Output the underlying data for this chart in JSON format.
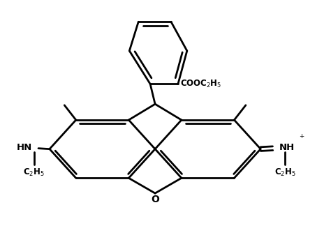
{
  "background_color": "#ffffff",
  "line_color": "#000000",
  "line_width": 2.0,
  "fig_width": 4.74,
  "fig_height": 3.47,
  "dpi": 100,
  "xlim": [
    0,
    10
  ],
  "ylim": [
    0,
    7.3
  ]
}
